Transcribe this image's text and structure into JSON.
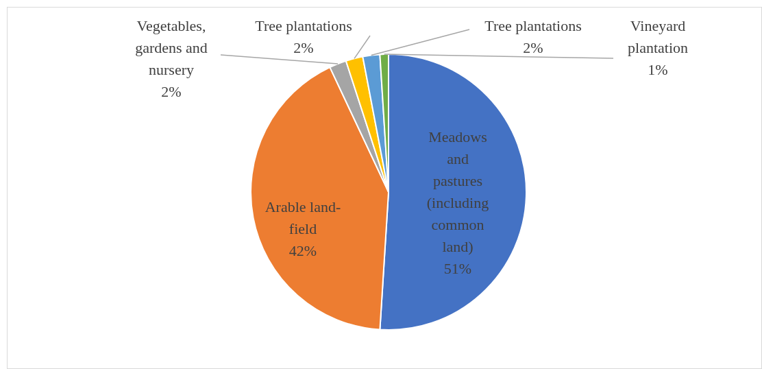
{
  "chart_data": {
    "type": "pie",
    "categories": [
      "Meadows and pastures (including common land)",
      "Arable land-field",
      "Vegetables, gardens and nursery",
      "Tree plantations",
      "Tree plantations",
      "Vineyard plantation"
    ],
    "values": [
      51,
      42,
      2,
      2,
      2,
      1
    ],
    "value_labels": [
      "51%",
      "42%",
      "2%",
      "2%",
      "2%",
      "1%"
    ],
    "colors": [
      "#4472c4",
      "#ed7d31",
      "#a5a5a5",
      "#ffc000",
      "#5b9bd5",
      "#70ad47"
    ],
    "legend": false
  }
}
